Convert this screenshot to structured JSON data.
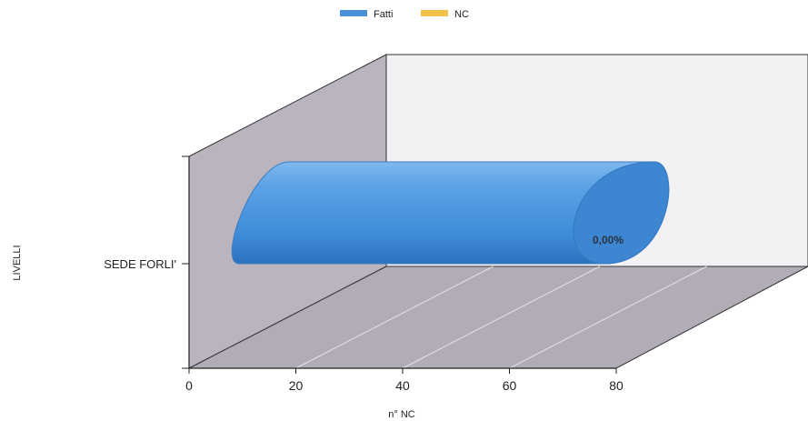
{
  "chart_data": {
    "type": "bar",
    "orientation": "horizontal",
    "three_d": true,
    "bar_shape": "cylinder",
    "categories": [
      "SEDE FORLI'"
    ],
    "series": [
      {
        "name": "Fatti",
        "values": [
          80
        ],
        "color": "#4a90d9"
      },
      {
        "name": "NC",
        "values": [
          0
        ],
        "color": "#f0c24a"
      }
    ],
    "data_labels": [
      "0,00%"
    ],
    "x_ticks": [
      "0",
      "20",
      "40",
      "60",
      "80"
    ],
    "xlim": [
      0,
      80
    ],
    "xlabel": "n° NC",
    "ylabel": "LIVELLI",
    "legend": "top-center",
    "grid": true,
    "colors": {
      "back_wall": "#f2f1f4",
      "side_wall": "#b9b4bd",
      "floor": "#b1acb5",
      "axis": "#222222"
    }
  }
}
